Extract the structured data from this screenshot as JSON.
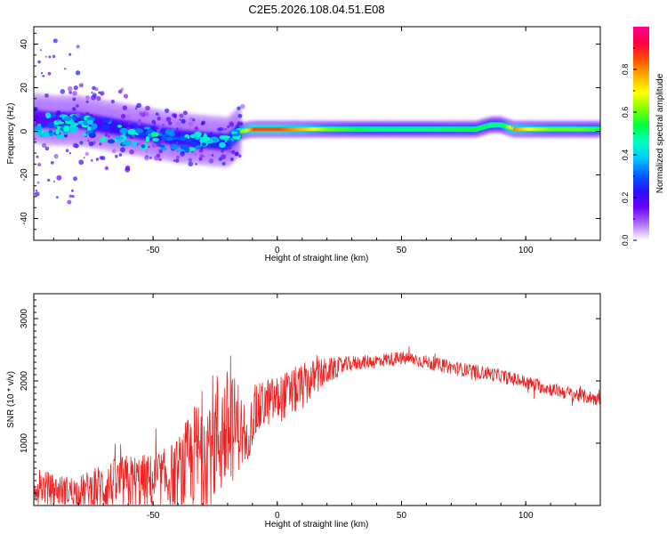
{
  "title": "C2E5.2026.108.04.51.E08",
  "chart_data": [
    {
      "type": "heatmap",
      "xlabel": "Height of straight line (km)",
      "ylabel": "Frequency (Hz)",
      "xlim": [
        -98,
        130
      ],
      "ylim": [
        -50,
        48
      ],
      "xticks": [
        -50,
        0,
        50,
        100
      ],
      "yticks": [
        -40,
        -20,
        0,
        20,
        40
      ],
      "colorbar": {
        "label": "Normalized spectral amplitude",
        "range": [
          0,
          1
        ],
        "ticks": [
          0.0,
          0.2,
          0.4,
          0.6,
          0.8
        ],
        "tick_labels": [
          "0.0",
          "0.2",
          "0.4",
          "0.6",
          "0.8"
        ],
        "colormap": [
          "#ffffff",
          "#b070ff",
          "#6a00ff",
          "#2a10ff",
          "#0060ff",
          "#00c8ff",
          "#00ffc0",
          "#00ff40",
          "#80ff00",
          "#ffff00",
          "#ffb000",
          "#ff5000",
          "#ff0040",
          "#ff0090"
        ]
      },
      "ridge": {
        "x": [
          -98,
          -90,
          -80,
          -70,
          -60,
          -50,
          -40,
          -30,
          -20,
          -15,
          -10,
          0,
          10,
          20,
          40,
          60,
          80,
          86,
          90,
          95,
          100,
          110,
          120,
          130
        ],
        "y": [
          6,
          5,
          5,
          3,
          1,
          -1,
          -3,
          -4,
          -5,
          0,
          1,
          1,
          1,
          1,
          1,
          1,
          1,
          3,
          3,
          1,
          1,
          1,
          1,
          1
        ],
        "amplitude": [
          0.3,
          0.35,
          0.35,
          0.4,
          0.4,
          0.4,
          0.4,
          0.45,
          0.4,
          0.6,
          0.85,
          0.85,
          0.75,
          0.6,
          0.5,
          0.5,
          0.55,
          0.5,
          0.5,
          0.8,
          0.7,
          0.6,
          0.6,
          0.55
        ]
      }
    },
    {
      "type": "line",
      "xlabel": "Height of straight line (km)",
      "ylabel": "SNR (10 * v/v)",
      "xlim": [
        -98,
        130
      ],
      "ylim": [
        0,
        3400
      ],
      "xticks": [
        -50,
        0,
        50,
        100
      ],
      "yticks": [
        1000,
        2000,
        3000
      ],
      "series": [
        {
          "color": "#ee2222",
          "x": [
            -98,
            -90,
            -80,
            -70,
            -60,
            -50,
            -45,
            -40,
            -35,
            -30,
            -25,
            -20,
            -15,
            -13,
            -10,
            -5,
            0,
            5,
            10,
            15,
            20,
            25,
            30,
            35,
            40,
            45,
            50,
            55,
            60,
            65,
            70,
            75,
            80,
            85,
            90,
            95,
            100,
            105,
            110,
            115,
            120,
            125,
            130
          ],
          "mean": [
            350,
            250,
            220,
            300,
            380,
            380,
            420,
            500,
            700,
            900,
            1100,
            1200,
            1300,
            900,
            1400,
            1650,
            1700,
            1800,
            1900,
            2050,
            2150,
            2230,
            2280,
            2300,
            2320,
            2350,
            2360,
            2350,
            2300,
            2260,
            2220,
            2180,
            2150,
            2120,
            2080,
            2030,
            1980,
            1920,
            1870,
            1820,
            1780,
            1740,
            1700
          ],
          "spread": [
            300,
            250,
            250,
            400,
            450,
            450,
            500,
            600,
            800,
            1000,
            1100,
            1000,
            700,
            300,
            450,
            400,
            380,
            380,
            380,
            300,
            220,
            150,
            120,
            110,
            110,
            110,
            110,
            110,
            110,
            110,
            110,
            110,
            110,
            110,
            110,
            110,
            110,
            110,
            110,
            110,
            110,
            110,
            110
          ]
        }
      ]
    }
  ]
}
